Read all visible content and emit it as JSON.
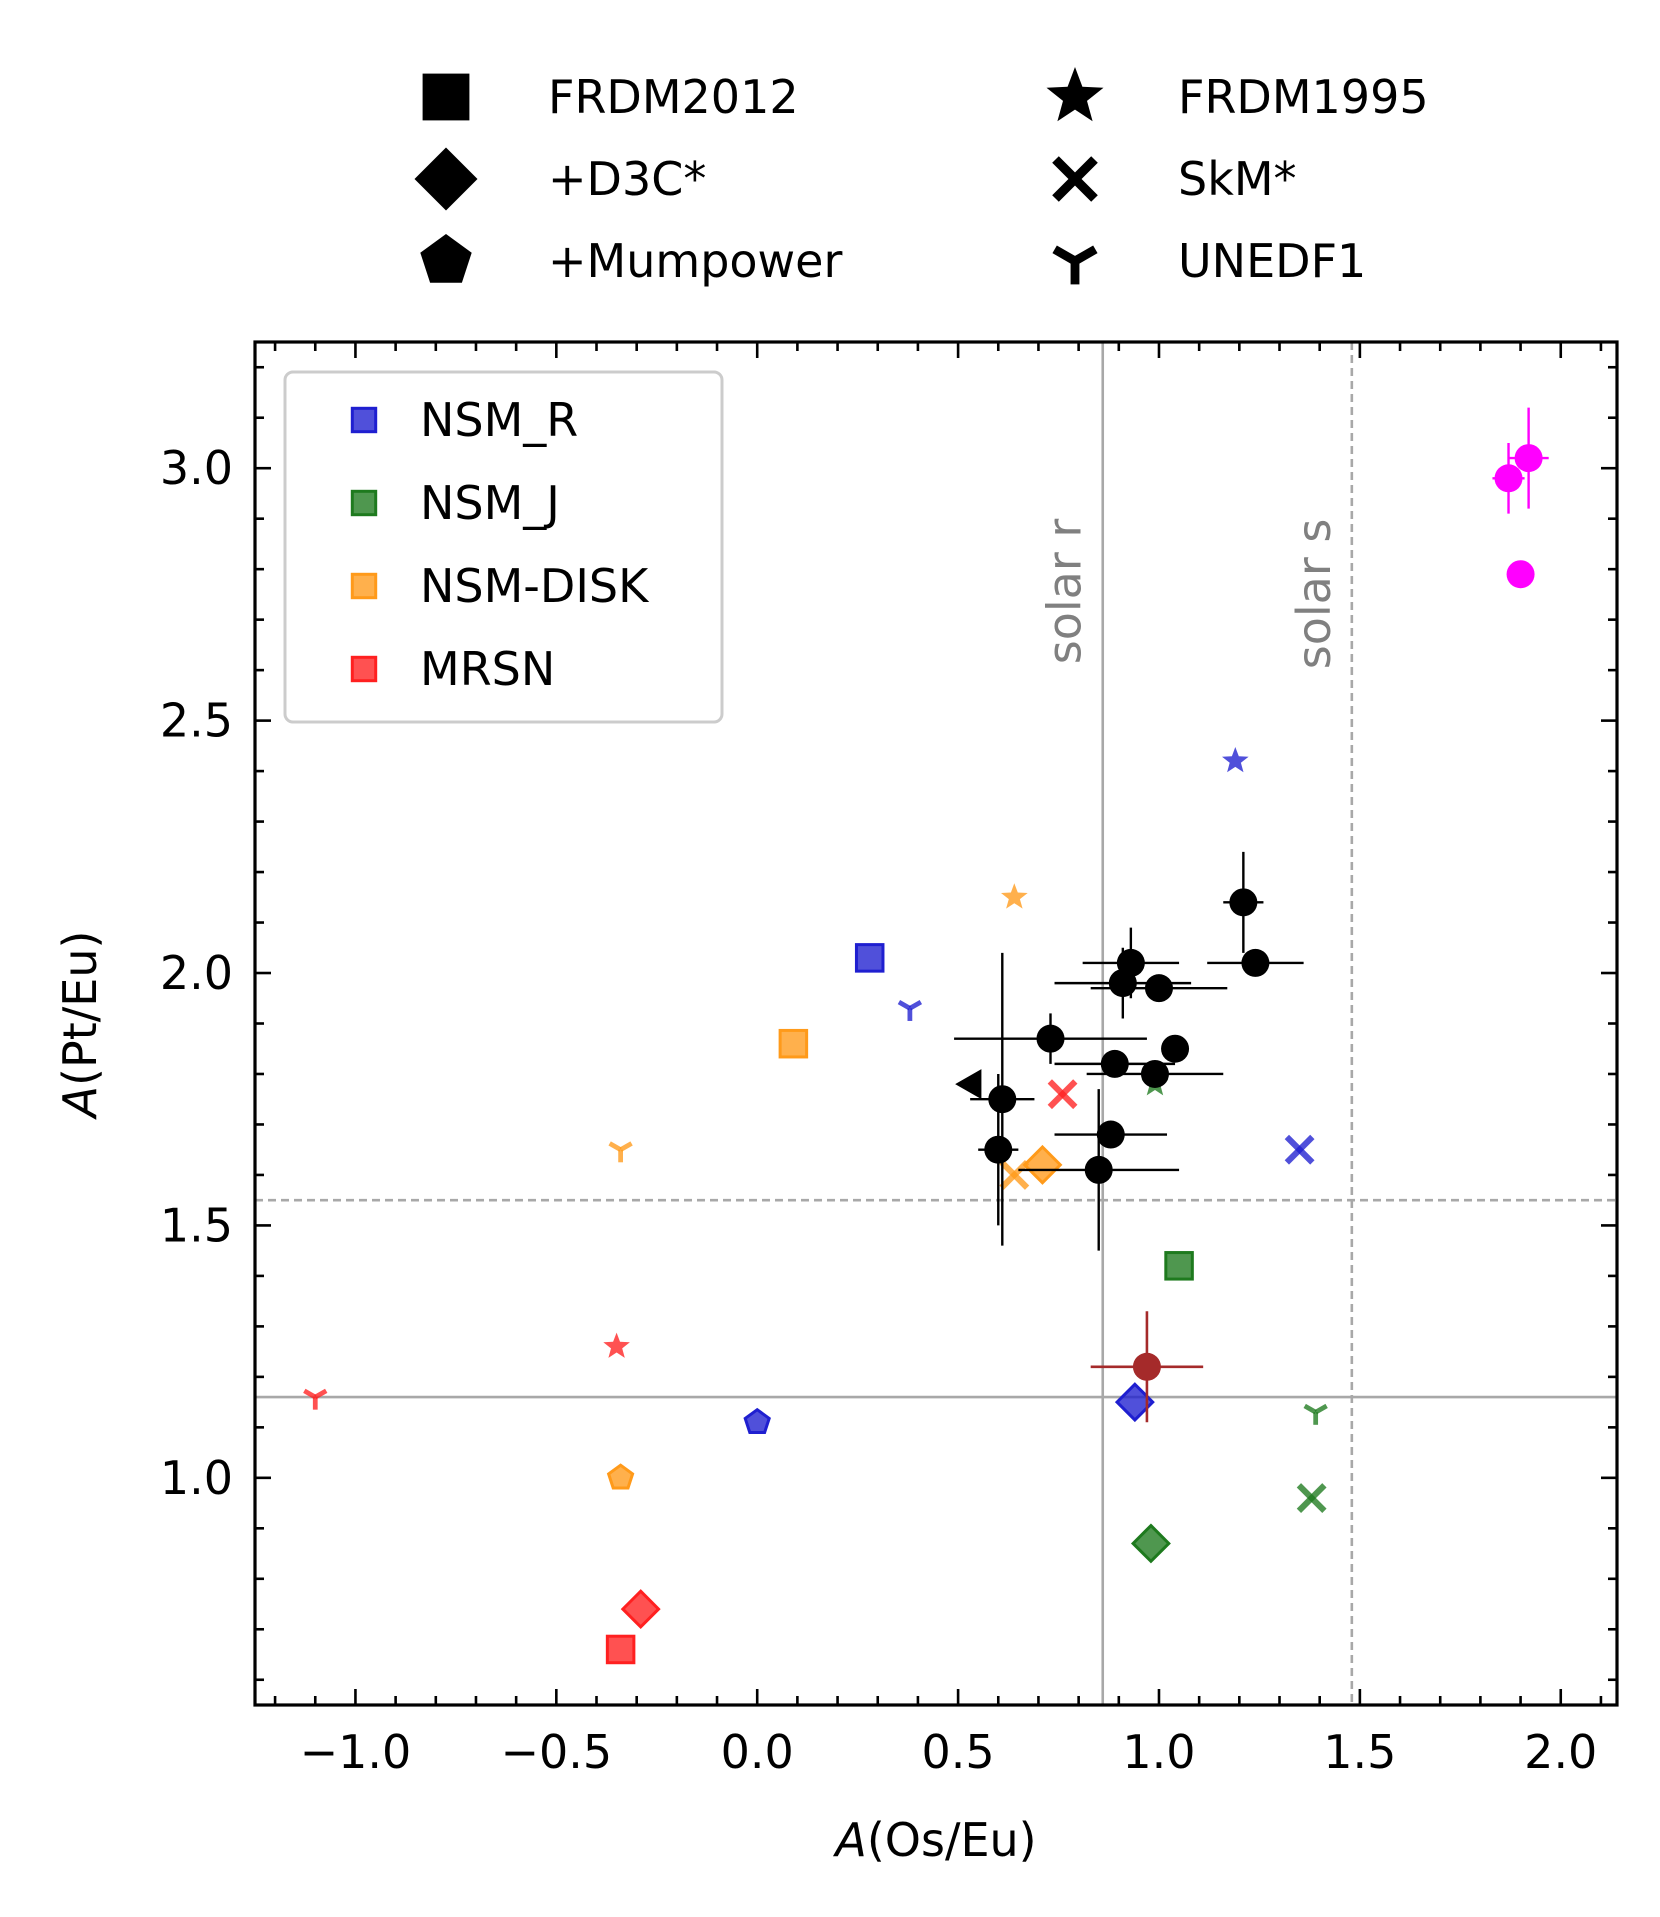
{
  "chart_data": {
    "type": "scatter",
    "xlabel_italic": "A",
    "xlabel_rest": "(Os/Eu)",
    "ylabel_italic": "A",
    "ylabel_rest": "(Pt/Eu)",
    "xlim": [
      -1.25,
      2.14
    ],
    "ylim": [
      0.55,
      3.25
    ],
    "xticks": [
      {
        "v": -1.0,
        "label": "−1.0"
      },
      {
        "v": -0.5,
        "label": "−0.5"
      },
      {
        "v": 0.0,
        "label": "0.0"
      },
      {
        "v": 0.5,
        "label": "0.5"
      },
      {
        "v": 1.0,
        "label": "1.0"
      },
      {
        "v": 1.5,
        "label": "1.5"
      },
      {
        "v": 2.0,
        "label": "2.0"
      }
    ],
    "yticks": [
      {
        "v": 1.0,
        "label": "1.0"
      },
      {
        "v": 1.5,
        "label": "1.5"
      },
      {
        "v": 2.0,
        "label": "2.0"
      },
      {
        "v": 2.5,
        "label": "2.5"
      },
      {
        "v": 3.0,
        "label": "3.0"
      }
    ],
    "reference_lines": [
      {
        "name": "solar-r-vertical",
        "axis": "x",
        "value": 0.86,
        "style": "solid",
        "label": "solar r"
      },
      {
        "name": "solar-s-vertical",
        "axis": "x",
        "value": 1.48,
        "style": "dashed",
        "label": "solar s"
      },
      {
        "name": "solar-r-horizontal",
        "axis": "y",
        "value": 1.16,
        "style": "solid"
      },
      {
        "name": "solar-s-horizontal",
        "axis": "y",
        "value": 1.55,
        "style": "dashed"
      }
    ],
    "marker_legend": [
      {
        "marker": "square",
        "label": "FRDM2012"
      },
      {
        "marker": "diamond",
        "label": "+D3C*"
      },
      {
        "marker": "pentagon",
        "label": "+Mumpower"
      },
      {
        "marker": "star",
        "label": "FRDM1995"
      },
      {
        "marker": "x",
        "label": "SkM*"
      },
      {
        "marker": "tri",
        "label": "UNEDF1"
      }
    ],
    "series": [
      {
        "name": "NSM_R",
        "color": "#1f1fd0",
        "points": [
          {
            "m": "square",
            "x": 0.28,
            "y": 2.03
          },
          {
            "m": "diamond",
            "x": 0.94,
            "y": 1.15
          },
          {
            "m": "pentagon",
            "x": 0.0,
            "y": 1.11
          },
          {
            "m": "star",
            "x": 1.19,
            "y": 2.42
          },
          {
            "m": "x",
            "x": 1.35,
            "y": 1.65
          },
          {
            "m": "tri",
            "x": 0.38,
            "y": 1.93
          }
        ]
      },
      {
        "name": "NSM_J",
        "color": "#1e7a1e",
        "points": [
          {
            "m": "square",
            "x": 1.05,
            "y": 1.42
          },
          {
            "m": "diamond",
            "x": 0.98,
            "y": 0.87
          },
          {
            "m": "star",
            "x": 0.99,
            "y": 1.78
          },
          {
            "m": "x",
            "x": 1.38,
            "y": 0.96
          },
          {
            "m": "tri",
            "x": 1.39,
            "y": 1.13
          }
        ]
      },
      {
        "name": "NSM-DISK",
        "color": "#ff9a1a",
        "points": [
          {
            "m": "square",
            "x": 0.09,
            "y": 1.86
          },
          {
            "m": "diamond",
            "x": 0.71,
            "y": 1.62
          },
          {
            "m": "pentagon",
            "x": -0.34,
            "y": 1.0
          },
          {
            "m": "star",
            "x": 0.64,
            "y": 2.15
          },
          {
            "m": "x",
            "x": 0.64,
            "y": 1.6
          },
          {
            "m": "tri",
            "x": -0.34,
            "y": 1.65
          }
        ]
      },
      {
        "name": "MRSN",
        "color": "#ff2020",
        "points": [
          {
            "m": "square",
            "x": -0.34,
            "y": 0.66
          },
          {
            "m": "diamond",
            "x": -0.29,
            "y": 0.74
          },
          {
            "m": "star",
            "x": -0.35,
            "y": 1.26
          },
          {
            "m": "x",
            "x": 0.76,
            "y": 1.76
          },
          {
            "m": "tri",
            "x": -1.1,
            "y": 1.16
          }
        ]
      }
    ],
    "observations_black": [
      {
        "x": 0.93,
        "y": 2.02,
        "xerr": 0.12,
        "yerr": 0.07
      },
      {
        "x": 0.91,
        "y": 1.98,
        "xerr": 0.17,
        "yerr": 0.07
      },
      {
        "x": 1.0,
        "y": 1.97,
        "xerr": 0.17,
        "yerr": 0.0
      },
      {
        "x": 1.21,
        "y": 2.14,
        "xerr": 0.05,
        "yerr": 0.1
      },
      {
        "x": 1.24,
        "y": 2.02,
        "xerr": 0.12,
        "yerr": 0.0
      },
      {
        "x": 0.73,
        "y": 1.87,
        "xerr": 0.24,
        "yerr": 0.05
      },
      {
        "x": 0.89,
        "y": 1.82,
        "xerr": 0.15,
        "yerr": 0.0
      },
      {
        "x": 1.04,
        "y": 1.85,
        "xerr": 0.0,
        "yerr": 0.0
      },
      {
        "x": 0.99,
        "y": 1.8,
        "xerr": 0.17,
        "yerr": 0.0
      },
      {
        "x": 0.61,
        "y": 1.75,
        "xerr": 0.08,
        "yerr": 0.29
      },
      {
        "x": 0.6,
        "y": 1.65,
        "xerr": 0.05,
        "yerr": 0.15
      },
      {
        "x": 0.88,
        "y": 1.68,
        "xerr": 0.14,
        "yerr": 0.0
      },
      {
        "x": 0.85,
        "y": 1.61,
        "xerr": 0.2,
        "yerr": 0.16
      }
    ],
    "observation_limit": {
      "x": 0.53,
      "y": 1.78,
      "marker": "triangle-left"
    },
    "observation_maroon": {
      "x": 0.97,
      "y": 1.22,
      "xerr": 0.14,
      "yerr": 0.11,
      "color": "#a52a2a"
    },
    "observations_magenta": [
      {
        "x": 1.87,
        "y": 2.98,
        "xerr": 0.04,
        "yerr": 0.07
      },
      {
        "x": 1.92,
        "y": 3.02,
        "xerr": 0.05,
        "yerr": 0.1
      },
      {
        "x": 1.9,
        "y": 2.79,
        "xerr": 0.03,
        "yerr": 0.0
      }
    ],
    "magenta_color": "#ff00ff"
  }
}
